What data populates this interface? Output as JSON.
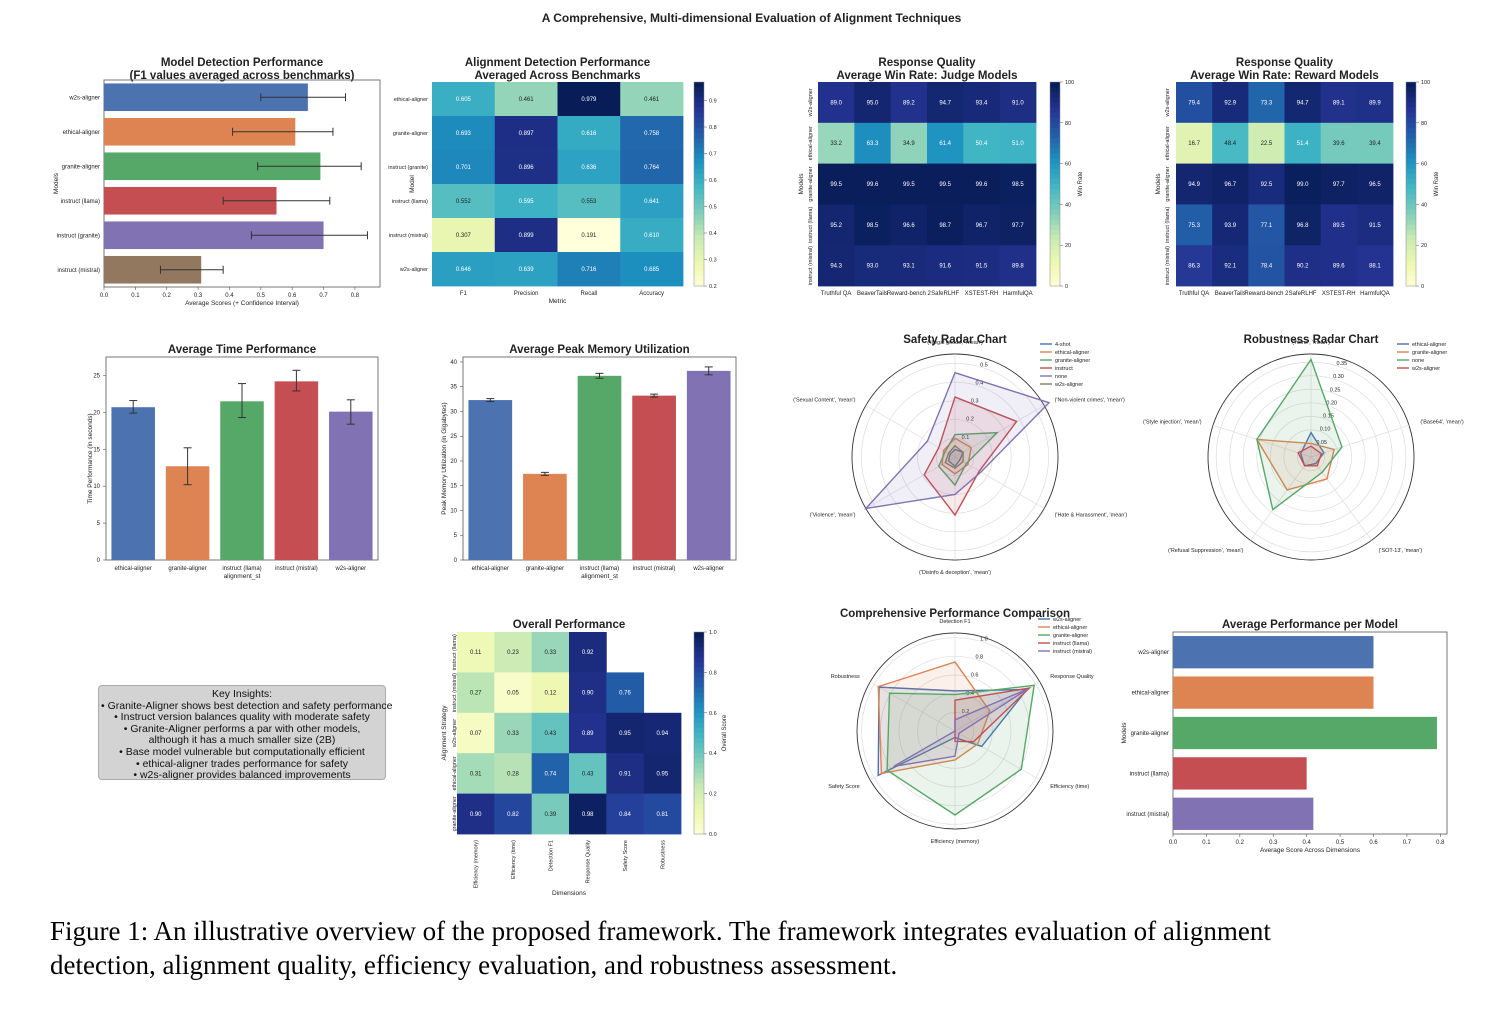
{
  "figure_title": "A Comprehensive, Multi-dimensional Evaluation of Alignment Techniques",
  "caption": {
    "line1": "Figure 1: An illustrative overview of the proposed framework. The framework integrates evaluation of alignment",
    "line2": "detection, alignment quality, efficiency evaluation, and robustness assessment."
  },
  "colors": {
    "blue": "#4c72b0",
    "orange": "#dd8452",
    "green": "#55a868",
    "red": "#c44e52",
    "purple": "#8172b3",
    "brown": "#937860",
    "heat_low": "#ffffd9",
    "heat_high": "#081d58"
  },
  "insights": {
    "title": "Key Insights:",
    "lines": [
      "• Granite-Aligner shows best detection and safety performance",
      "• Instruct version balances quality with moderate safety",
      "• Granite-Aligner performs a par with other models,",
      "although it has a much smaller size (2B)",
      "• Base model vulnerable but computationally efficient",
      "• ethical-aligner trades performance for safety",
      "• w2s-aligner provides balanced improvements"
    ]
  },
  "chart_data": [
    {
      "id": "detection",
      "type": "bar",
      "orientation": "horizontal",
      "title": "Model Detection Performance\n(F1 values averaged across benchmarks)",
      "xlabel": "Average Scores (+ Confidence Interval)",
      "ylabel": "Models",
      "categories": [
        "w2s-aligner",
        "ethical-aligner",
        "granite-aligner",
        "instruct (llama)",
        "instruct (granite)",
        "instruct (mistral)"
      ],
      "values": [
        0.65,
        0.61,
        0.69,
        0.55,
        0.7,
        0.31
      ],
      "ci": [
        [
          0.5,
          0.77
        ],
        [
          0.41,
          0.73
        ],
        [
          0.49,
          0.82
        ],
        [
          0.38,
          0.72
        ],
        [
          0.47,
          0.84
        ],
        [
          0.18,
          0.38
        ]
      ],
      "xlim": [
        0,
        0.88
      ],
      "xticks": [
        "0.0",
        "0.1",
        "0.2",
        "0.3",
        "0.4",
        "0.5",
        "0.6",
        "0.7",
        "0.8"
      ],
      "colors": [
        "#4c72b0",
        "#dd8452",
        "#55a868",
        "#c44e52",
        "#8172b3",
        "#937860"
      ]
    },
    {
      "id": "alignment_heatmap",
      "type": "heatmap",
      "title": "Alignment Detection Performance\nAveraged Across Benchmarks",
      "xlabel": "Metric",
      "ylabel": "Model",
      "rows": [
        "ethical-aligner",
        "granite-aligner",
        "instruct (granite)",
        "instruct (llama)",
        "instruct (mistral)",
        "w2s-aligner"
      ],
      "cols": [
        "F1",
        "Precision",
        "Recall",
        "Accuracy"
      ],
      "values": [
        [
          "0.605",
          "0.461",
          "0.979",
          "0.461"
        ],
        [
          "0.693",
          "0.897",
          "0.616",
          "0.758"
        ],
        [
          "0.701",
          "0.896",
          "0.636",
          "0.764"
        ],
        [
          "0.552",
          "0.595",
          "0.553",
          "0.641"
        ],
        [
          "0.307",
          "0.899",
          "0.191",
          "0.610"
        ],
        [
          "0.646",
          "0.639",
          "0.716",
          "0.685"
        ]
      ],
      "vmin": 0.2,
      "vmax": 0.97,
      "colorbar_ticks": [
        "0.9",
        "0.8",
        "0.7",
        "0.6",
        "0.5",
        "0.4",
        "0.3",
        "0.2"
      ]
    },
    {
      "id": "judge_heatmap",
      "type": "heatmap",
      "title": "Response Quality\nAverage Win Rate: Judge Models",
      "xlabel": "",
      "ylabel": "Models",
      "rows": [
        "w2s-aligner",
        "ethical-aligner",
        "granite-aligner",
        "instruct (llama)",
        "instruct (mistral)"
      ],
      "cols": [
        "Truthful QA",
        "BeaverTails",
        "Reward-bench 2",
        "SafeRLHF",
        "XSTEST-RH",
        "HarmfulQA"
      ],
      "values": [
        [
          "89.0",
          "95.0",
          "89.2",
          "94.7",
          "93.4",
          "91.0"
        ],
        [
          "33.2",
          "63.3",
          "34.9",
          "61.4",
          "50.4",
          "51.0"
        ],
        [
          "99.5",
          "99.6",
          "99.5",
          "99.5",
          "99.6",
          "98.5"
        ],
        [
          "95.2",
          "98.5",
          "96.6",
          "98.7",
          "96.7",
          "97.7"
        ],
        [
          "94.3",
          "93.0",
          "93.1",
          "91.6",
          "91.5",
          "89.8"
        ]
      ],
      "vmin": 0,
      "vmax": 100,
      "colorbar_label": "Win Rate",
      "colorbar_ticks": [
        "100",
        "80",
        "60",
        "40",
        "20",
        "0"
      ]
    },
    {
      "id": "reward_heatmap",
      "type": "heatmap",
      "title": "Response Quality\nAverage Win Rate: Reward Models",
      "xlabel": "",
      "ylabel": "Models",
      "rows": [
        "w2s-aligner",
        "ethical-aligner",
        "granite-aligner",
        "instruct (llama)",
        "instruct (mistral)"
      ],
      "cols": [
        "Truthful QA",
        "BeaverTails",
        "Reward-bench 2",
        "SafeRLHF",
        "XSTEST-RH",
        "HarmfulQA"
      ],
      "values": [
        [
          "79.4",
          "92.9",
          "73.3",
          "94.7",
          "89.1",
          "89.9"
        ],
        [
          "16.7",
          "48.4",
          "22.5",
          "51.4",
          "39.6",
          "39.4"
        ],
        [
          "94.9",
          "96.7",
          "92.5",
          "99.0",
          "97.7",
          "96.5"
        ],
        [
          "75.3",
          "93.9",
          "77.1",
          "96.8",
          "89.5",
          "91.5"
        ],
        [
          "86.3",
          "92.1",
          "78.4",
          "90.2",
          "89.6",
          "88.1"
        ]
      ],
      "vmin": 0,
      "vmax": 100,
      "colorbar_label": "Win Rate",
      "colorbar_ticks": [
        "100",
        "80",
        "60",
        "40",
        "20",
        "0"
      ]
    },
    {
      "id": "time",
      "type": "bar",
      "orientation": "vertical",
      "title": "Average Time Performance",
      "xlabel": "alignment_st",
      "ylabel": "Time Performance (in seconds)",
      "categories": [
        "ethical-aligner",
        "granite-aligner",
        "instruct (llama)",
        "instruct (mistral)",
        "w2s-aligner"
      ],
      "values": [
        20.7,
        12.7,
        21.5,
        24.2,
        20.1
      ],
      "ci": [
        [
          19.9,
          21.6
        ],
        [
          10.2,
          15.2
        ],
        [
          19.3,
          23.9
        ],
        [
          22.9,
          25.7
        ],
        [
          18.4,
          21.7
        ]
      ],
      "ylim": [
        0,
        27.5
      ],
      "yticks": [
        "0",
        "5",
        "10",
        "15",
        "20",
        "25"
      ],
      "colors": [
        "#4c72b0",
        "#dd8452",
        "#55a868",
        "#c44e52",
        "#8172b3"
      ]
    },
    {
      "id": "memory",
      "type": "bar",
      "orientation": "vertical",
      "title": "Average Peak Memory Utilization",
      "xlabel": "alignment_st",
      "ylabel": "Peak Memory Utilization (in Gigabytes)",
      "categories": [
        "ethical-aligner",
        "granite-aligner",
        "instruct (llama)",
        "instruct (mistral)",
        "w2s-aligner"
      ],
      "values": [
        32.3,
        17.4,
        37.2,
        33.2,
        38.2
      ],
      "ci": [
        [
          32.0,
          32.6
        ],
        [
          17.1,
          17.7
        ],
        [
          36.7,
          37.7
        ],
        [
          32.9,
          33.5
        ],
        [
          37.4,
          39.0
        ]
      ],
      "ylim": [
        0,
        41
      ],
      "yticks": [
        "0",
        "5",
        "10",
        "15",
        "20",
        "25",
        "30",
        "35",
        "40"
      ],
      "colors": [
        "#4c72b0",
        "#dd8452",
        "#55a868",
        "#c44e52",
        "#8172b3"
      ]
    },
    {
      "id": "safety_radar",
      "type": "radar",
      "title": "Safety Radar Chart",
      "axes": [
        "('Illegal goods', 'mean')",
        "('Non-violent crimes', 'mean')",
        "('Hate & Harassment', 'mean')",
        "('Disinfo & deception', 'mean')",
        "('Violence', 'mean')",
        "('Sexual Content', 'mean')"
      ],
      "rticks": [
        "0.1",
        "0.2",
        "0.3",
        "0.4",
        "0.5"
      ],
      "rmax": 0.55,
      "series": [
        {
          "name": "4-shot",
          "color": "#4c72b0",
          "values": [
            0.04,
            0.05,
            0.03,
            0.05,
            0.04,
            0.03
          ]
        },
        {
          "name": "ethical-aligner",
          "color": "#dd8452",
          "values": [
            0.1,
            0.1,
            0.08,
            0.09,
            0.08,
            0.07
          ]
        },
        {
          "name": "granite-aligner",
          "color": "#55a868",
          "values": [
            0.12,
            0.26,
            0.07,
            0.15,
            0.1,
            0.06
          ]
        },
        {
          "name": "instruct",
          "color": "#c44e52",
          "values": [
            0.32,
            0.38,
            0.15,
            0.31,
            0.19,
            0.1
          ]
        },
        {
          "name": "none",
          "color": "#8172b3",
          "values": [
            0.45,
            0.58,
            0.16,
            0.2,
            0.55,
            0.17
          ]
        },
        {
          "name": "w2s-aligner",
          "color": "#937860",
          "values": [
            0.06,
            0.05,
            0.05,
            0.06,
            0.06,
            0.04
          ]
        }
      ]
    },
    {
      "id": "robustness_radar",
      "type": "radar",
      "title": "Robustness Radar Chart",
      "axes": [
        "('None', 'mean')",
        "('Base64', 'mean')",
        "('SOT-13', 'mean')",
        "('Refusal Suppression', 'mean')",
        "('Style injection', 'mean')"
      ],
      "rticks": [
        "0.05",
        "0.10",
        "0.15",
        "0.20",
        "0.25",
        "0.30",
        "0.35"
      ],
      "rmax": 0.38,
      "series": [
        {
          "name": "ethical-aligner",
          "color": "#4c72b0",
          "values": [
            0.09,
            0.05,
            0.03,
            0.04,
            0.04
          ]
        },
        {
          "name": "granite-aligner",
          "color": "#dd8452",
          "values": [
            0.05,
            0.09,
            0.1,
            0.15,
            0.21
          ]
        },
        {
          "name": "none",
          "color": "#55a868",
          "values": [
            0.36,
            0.12,
            0.07,
            0.24,
            0.21
          ]
        },
        {
          "name": "w2s-aligner",
          "color": "#c44e52",
          "values": [
            0.04,
            0.04,
            0.04,
            0.04,
            0.05
          ]
        }
      ]
    },
    {
      "id": "overall_heatmap",
      "type": "heatmap",
      "title": "Overall Performance",
      "xlabel": "Dimensions",
      "ylabel": "Alignment Strategy",
      "rows": [
        "instruct (llama)",
        "instruct (mistral)",
        "w2s-aligner",
        "ethical-aligner",
        "granite-aligner"
      ],
      "cols": [
        "Efficiency (memory)",
        "Efficiency (time)",
        "Detection F1",
        "Response Quality",
        "Safety Score",
        "Robustness"
      ],
      "values": [
        [
          "0.11",
          "0.23",
          "0.33",
          "0.92",
          "",
          ""
        ],
        [
          "0.27",
          "0.05",
          "0.12",
          "0.90",
          "0.76",
          ""
        ],
        [
          "0.07",
          "0.33",
          "0.43",
          "0.89",
          "0.95",
          "0.94"
        ],
        [
          "0.31",
          "0.28",
          "0.74",
          "0.43",
          "0.91",
          "0.95"
        ],
        [
          "0.90",
          "0.82",
          "0.39",
          "0.98",
          "0.84",
          "0.81"
        ]
      ],
      "vmin": 0,
      "vmax": 1,
      "colorbar_label": "Overall Score",
      "colorbar_ticks": [
        "1.0",
        "0.8",
        "0.6",
        "0.4",
        "0.2",
        "0.0"
      ]
    },
    {
      "id": "comprehensive_radar",
      "type": "radar",
      "title": "Comprehensive Performance Comparison",
      "axes": [
        "Detection F1",
        "Response Quality",
        "Efficiency (time)",
        "Efficiency (memory)",
        "Safety Score",
        "Robustness"
      ],
      "rticks": [
        "0.2",
        "0.4",
        "0.6",
        "0.8",
        "1.0"
      ],
      "rmax": 1.05,
      "series": [
        {
          "name": "w2s-aligner",
          "color": "#4c72b0",
          "values": [
            0.43,
            0.89,
            0.33,
            0.07,
            0.95,
            0.94
          ]
        },
        {
          "name": "ethical-aligner",
          "color": "#dd8452",
          "values": [
            0.74,
            0.43,
            0.28,
            0.31,
            0.91,
            0.95
          ]
        },
        {
          "name": "granite-aligner",
          "color": "#55a868",
          "values": [
            0.39,
            0.98,
            0.82,
            0.9,
            0.84,
            0.81
          ]
        },
        {
          "name": "instruct (llama)",
          "color": "#c44e52",
          "values": [
            0.33,
            0.92,
            0.23,
            0.11,
            0.0,
            0.0
          ]
        },
        {
          "name": "instruct (mistral)",
          "color": "#8172b3",
          "values": [
            0.12,
            0.9,
            0.05,
            0.27,
            0.76,
            0.0
          ]
        }
      ]
    },
    {
      "id": "avg_performance",
      "type": "bar",
      "orientation": "horizontal",
      "title": "Average Performance per Model",
      "xlabel": "Average Score Across Dimensions",
      "ylabel": "Models",
      "categories": [
        "w2s-aligner",
        "ethical-aligner",
        "granite-aligner",
        "instruct (llama)",
        "instruct (mistral)"
      ],
      "values": [
        0.6,
        0.6,
        0.79,
        0.4,
        0.42
      ],
      "xlim": [
        0,
        0.82
      ],
      "xticks": [
        "0.0",
        "0.1",
        "0.2",
        "0.3",
        "0.4",
        "0.5",
        "0.6",
        "0.7",
        "0.8"
      ],
      "colors": [
        "#4c72b0",
        "#dd8452",
        "#55a868",
        "#c44e52",
        "#8172b3"
      ]
    }
  ]
}
